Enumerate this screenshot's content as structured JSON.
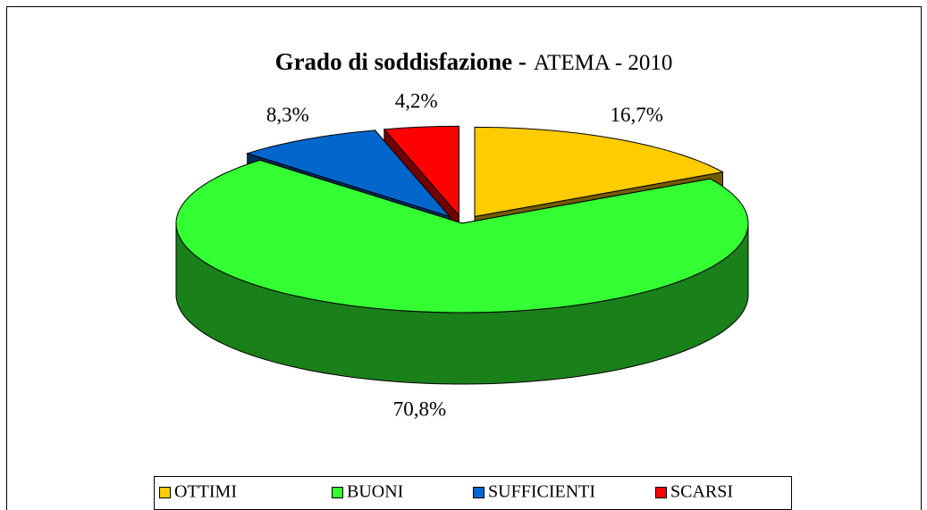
{
  "chart_data": {
    "type": "pie3d",
    "title": "Grado di soddisfazione -",
    "subtitle": "ATEMA - 2010",
    "categories": [
      "OTTIMI",
      "BUONI",
      "SUFFICIENTI",
      "SCARSI"
    ],
    "values": [
      16.7,
      70.8,
      8.3,
      4.2
    ],
    "value_labels": [
      "16,7%",
      "70,8%",
      "8,3%",
      "4,2%"
    ],
    "colors": [
      "#ffcc00",
      "#33ff33",
      "#0066cc",
      "#ff0000"
    ],
    "legend": "bottom"
  }
}
